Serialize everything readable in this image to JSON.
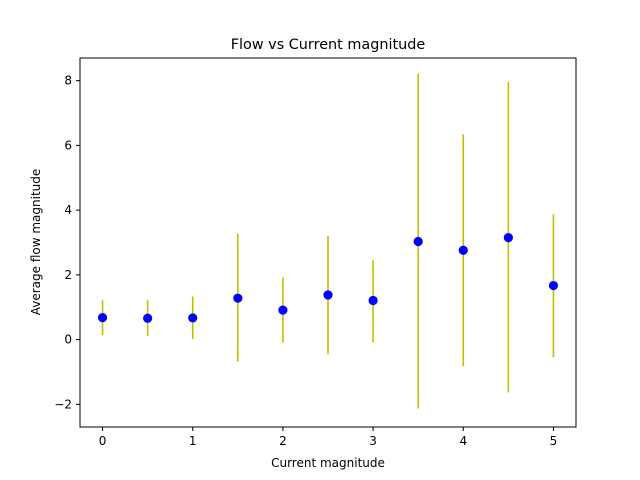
{
  "chart_data": {
    "type": "scatter",
    "title": "Flow vs Current magnitude",
    "xlabel": "Current magnitude",
    "ylabel": "Average flow magnitude",
    "xlim": [
      -0.25,
      5.25
    ],
    "ylim": [
      -2.7,
      8.7
    ],
    "xticks": [
      0,
      1,
      2,
      3,
      4,
      5
    ],
    "xtick_labels": [
      "0",
      "1",
      "2",
      "3",
      "4",
      "5"
    ],
    "yticks": [
      -2,
      0,
      2,
      4,
      6,
      8
    ],
    "ytick_labels": [
      "−2",
      "0",
      "2",
      "4",
      "6",
      "8"
    ],
    "grid": false,
    "series": [
      {
        "x": [
          0,
          0.5,
          1,
          1.5,
          2,
          2.5,
          3,
          3.5,
          4,
          4.5,
          5
        ],
        "y": [
          0.68,
          0.66,
          0.67,
          1.28,
          0.91,
          1.38,
          1.21,
          3.03,
          2.76,
          3.15,
          1.67
        ],
        "yerr_low": [
          0.14,
          0.11,
          0.02,
          -0.68,
          -0.09,
          -0.45,
          -0.08,
          -2.13,
          -0.82,
          -1.63,
          -0.55
        ],
        "yerr_high": [
          1.22,
          1.22,
          1.33,
          3.27,
          1.92,
          3.21,
          2.45,
          8.22,
          6.34,
          7.96,
          3.87
        ],
        "marker_color": "#0000ff",
        "errorbar_color": "#bfbf00"
      }
    ]
  }
}
